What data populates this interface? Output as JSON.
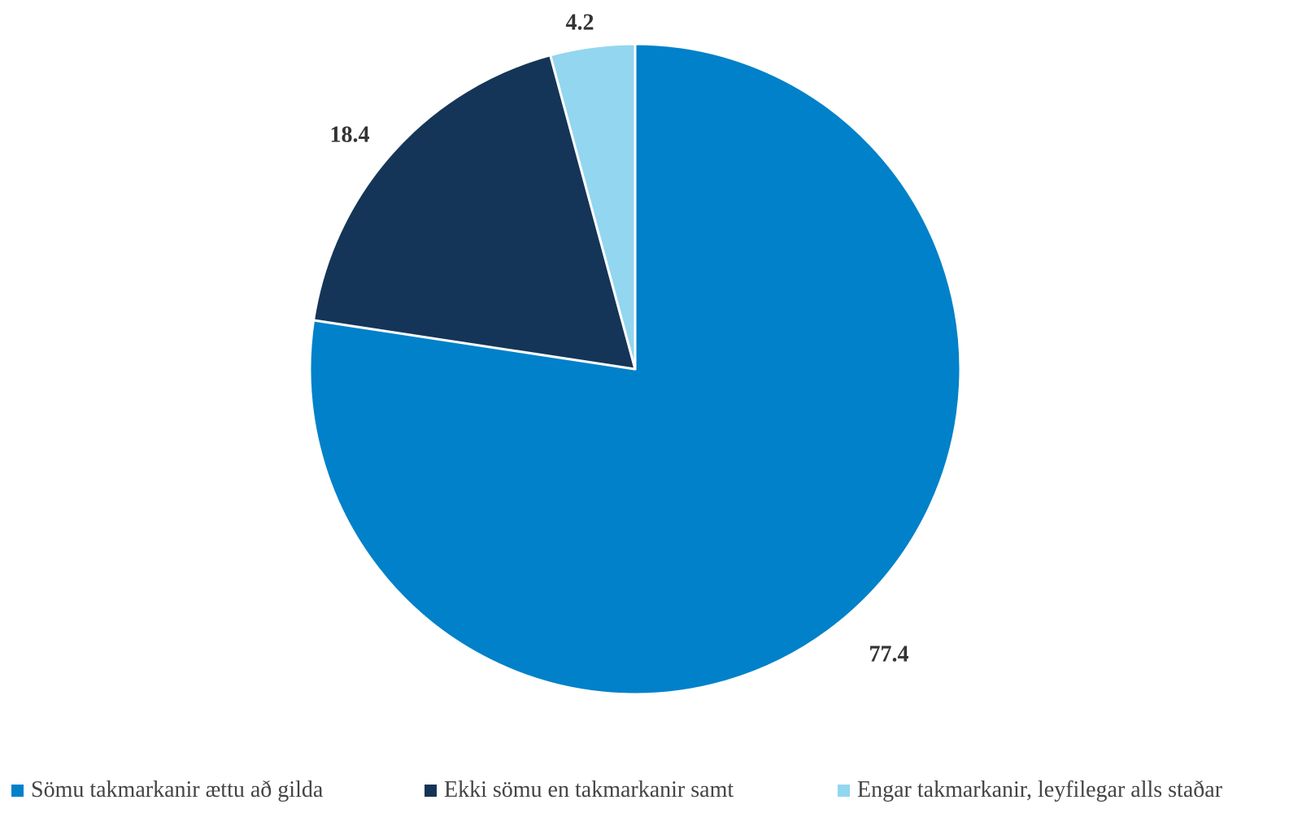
{
  "chart_data": {
    "type": "pie",
    "categories": [
      "Sömu takmarkanir ættu að gilda",
      "Ekki sömu en takmarkanir samt",
      "Engar takmarkanir, leyfilegar alls staðar"
    ],
    "values": [
      77.4,
      18.4,
      4.2
    ],
    "data_labels": [
      "77.4",
      "18.4",
      "4.2"
    ],
    "colors": [
      "#0081C9",
      "#143557",
      "#93D6F0"
    ],
    "start_angle": "12 o'clock",
    "direction": "clockwise",
    "legend_position": "bottom"
  }
}
